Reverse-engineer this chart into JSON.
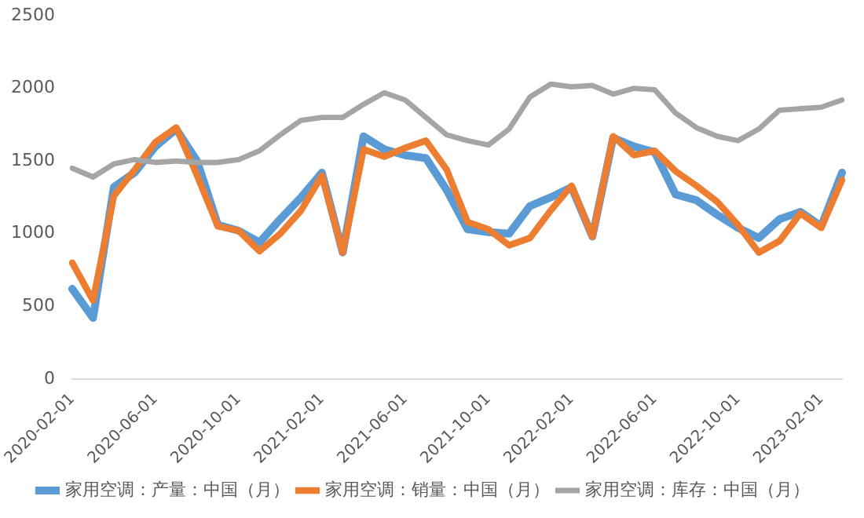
{
  "chart_data": {
    "type": "line",
    "categories": [
      "2020-02-01",
      null,
      null,
      null,
      "2020-06-01",
      null,
      null,
      null,
      "2020-10-01",
      null,
      null,
      null,
      "2021-02-01",
      null,
      null,
      null,
      "2021-06-01",
      null,
      null,
      null,
      "2021-10-01",
      null,
      null,
      null,
      "2022-02-01",
      null,
      null,
      null,
      "2022-06-01",
      null,
      null,
      null,
      "2022-10-01",
      null,
      null,
      null,
      "2023-02-01",
      null
    ],
    "series": [
      {
        "name": "家用空调：产量：中国（月）",
        "color": "#5b9bd5",
        "values": [
          620,
          420,
          1320,
          1420,
          1600,
          1720,
          1500,
          1060,
          1020,
          940,
          1100,
          1250,
          1420,
          870,
          1670,
          1580,
          1540,
          1520,
          1300,
          1030,
          1010,
          1000,
          1190,
          1250,
          1320,
          980,
          1660,
          1600,
          1560,
          1270,
          1230,
          1130,
          1040,
          970,
          1100,
          1150,
          1050,
          1420
        ]
      },
      {
        "name": "家用空调：销量：中国（月）",
        "color": "#ed7d31",
        "values": [
          800,
          540,
          1260,
          1440,
          1630,
          1730,
          1400,
          1050,
          1020,
          880,
          1000,
          1160,
          1400,
          870,
          1580,
          1530,
          1590,
          1640,
          1440,
          1080,
          1030,
          920,
          970,
          1160,
          1330,
          980,
          1670,
          1540,
          1570,
          1430,
          1330,
          1220,
          1060,
          870,
          950,
          1140,
          1040,
          1370
        ]
      },
      {
        "name": "家用空调：库存：中国（月）",
        "color": "#a5a5a5",
        "values": [
          1450,
          1390,
          1480,
          1510,
          1490,
          1500,
          1490,
          1490,
          1510,
          1570,
          1680,
          1780,
          1800,
          1800,
          1890,
          1970,
          1920,
          1800,
          1680,
          1640,
          1610,
          1720,
          1940,
          2030,
          2010,
          2020,
          1960,
          2000,
          1990,
          1830,
          1730,
          1670,
          1640,
          1720,
          1850,
          1860,
          1870,
          1920
        ]
      }
    ],
    "ylim": [
      0,
      2500
    ],
    "yticks": [
      0,
      500,
      1000,
      1500,
      2000,
      2500
    ],
    "grid": false,
    "legend": "bottom",
    "marker": "none",
    "line_style": "solid"
  }
}
